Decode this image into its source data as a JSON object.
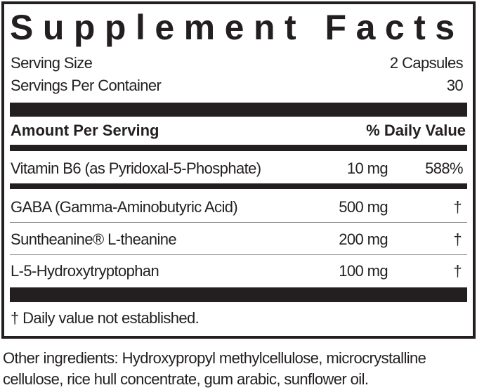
{
  "title": "Supplement Facts",
  "serving_size": {
    "label": "Serving Size",
    "value": "2 Capsules"
  },
  "servings_per_container": {
    "label": "Servings Per  Container",
    "value": "30"
  },
  "header": {
    "amount": "Amount Per Serving",
    "dv": "% Daily Value"
  },
  "rows": [
    {
      "name": "Vitamin B6 (as Pyridoxal-5-Phosphate)",
      "amount": "10 mg",
      "dv": "588%"
    },
    {
      "name": "GABA (Gamma-Aminobutyric Acid)",
      "amount": "500 mg",
      "dv": "†"
    },
    {
      "name": "Suntheanine® L-theanine",
      "amount": "200 mg",
      "dv": "†"
    },
    {
      "name": "L-5-Hydroxytryptophan",
      "amount": "100 mg",
      "dv": "†"
    }
  ],
  "footnote": "† Daily value not established.",
  "other_ingredients": {
    "line1": "Other ingredients:  Hydroxypropyl methylcellulose, microcrystalline",
    "line2": "cellulose, rice hull concentrate, gum arabic, sunflower oil."
  }
}
